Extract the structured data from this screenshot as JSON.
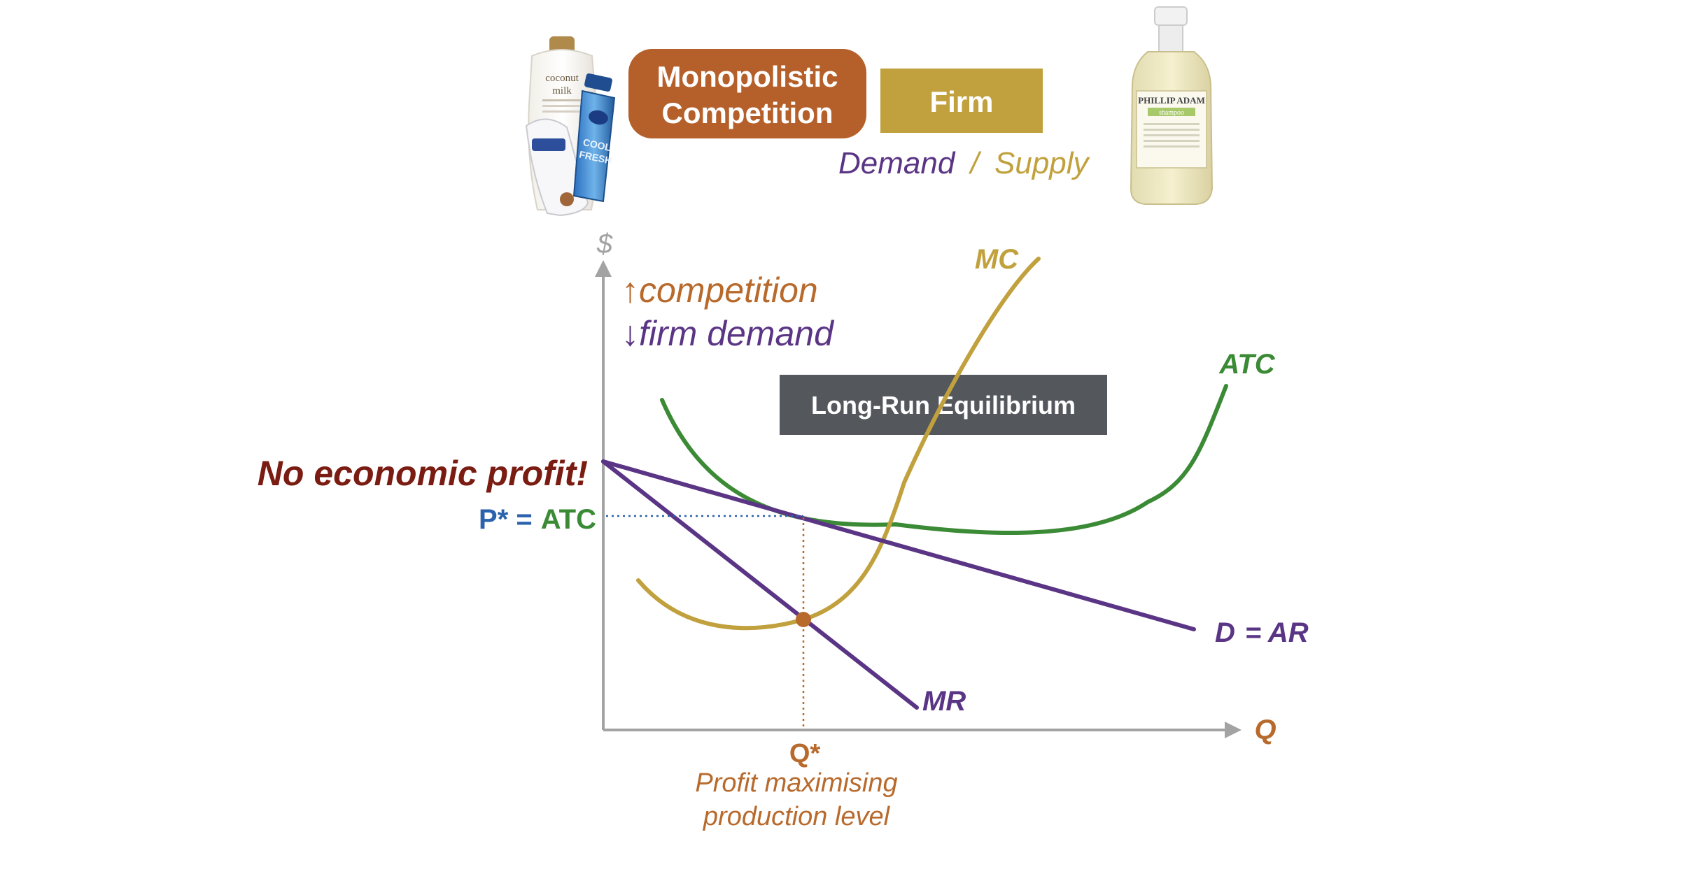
{
  "header": {
    "market_label": "Monopolistic Competition",
    "market_label_lines": [
      "Monopolistic",
      "Competition"
    ],
    "firm_label": "Firm",
    "demand_word": "Demand",
    "slash": "/",
    "supply_word": "Supply"
  },
  "product_left": {
    "bottle_text": [
      "coconut",
      "milk"
    ],
    "can_text": [
      "COOL",
      "FRESH"
    ]
  },
  "product_right": {
    "brand": "PHILLIP ADAM",
    "product": "shampoo"
  },
  "axes": {
    "y_label": "$",
    "x_label": "Q"
  },
  "annotations": {
    "competition_arrow": "↑",
    "competition_text": "competition",
    "firm_demand_arrow": "↓",
    "firm_demand_text": "firm demand",
    "equilibrium_box": "Long-Run Equilibrium",
    "no_profit": "No economic profit!",
    "price_label_p": "P* =",
    "price_label_atc": "ATC",
    "q_star": "Q*",
    "q_star_note": [
      "Profit maximising",
      "production level"
    ]
  },
  "curves": {
    "mc": "MC",
    "atc": "ATC",
    "demand": "D",
    "demand_ar": "= AR",
    "mr": "MR"
  },
  "colors": {
    "market_box": "#b5602a",
    "firm_box": "#c1a13d",
    "mc": "#c1a13d",
    "atc": "#3b8a35",
    "demand": "#5b3585",
    "equilibrium_box": "#54575c",
    "no_profit": "#7a1c12",
    "price_p": "#2b62ad",
    "q_star": "#b86a2c",
    "axis": "#a3a3a3"
  }
}
